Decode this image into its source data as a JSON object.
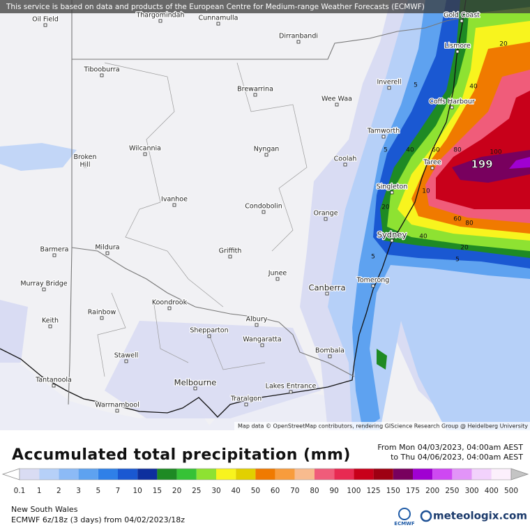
{
  "notice": "This service is based on data and products of the European Centre for Medium-range Weather Forecasts (ECMWF)",
  "attribution": "Map data © OpenStreetMap contributors, rendering GIScience Research Group @ Heidelberg University",
  "places": [
    "Oil Field",
    "Thargomindah",
    "Cunnamulla",
    "Dirranbandi",
    "Gold Coast",
    "Lismore",
    "Tibooburra",
    "Brewarrina",
    "Inverell",
    "Wee Waa",
    "Coffs Harbour",
    "Tamworth",
    "Wilcannia",
    "Broken Hill",
    "Nyngan",
    "Coolah",
    "Taree",
    "Singleton",
    "Ivanhoe",
    "Condobolin",
    "Orange",
    "Sydney",
    "Barmera",
    "Mildura",
    "Griffith",
    "Junee",
    "Murray Bridge",
    "Canberra",
    "Tomerong",
    "Koondrook",
    "Rainbow",
    "Keith",
    "Albury",
    "Shepparton",
    "Wangaratta",
    "Bombala",
    "Stawell",
    "Tantanoola",
    "Melbourne",
    "Lakes Entrance",
    "Traralgon",
    "Warrnambool"
  ],
  "max_label": "199",
  "contour_labels": [
    "20",
    "40",
    "5",
    "100",
    "80",
    "60",
    "40",
    "5",
    "10",
    "20",
    "60",
    "80",
    "40",
    "20",
    "5",
    "5"
  ],
  "title": "Accumulated total precipitation (mm)",
  "period": [
    "From Mon 04/03/2023, 04:00am AEST",
    "to Thu 04/06/2023, 04:00am AEST"
  ],
  "legend": {
    "ticks": [
      0.1,
      1,
      2,
      3,
      5,
      7,
      10,
      15,
      20,
      25,
      30,
      40,
      50,
      60,
      70,
      80,
      90,
      100,
      125,
      150,
      175,
      200,
      250,
      300,
      400,
      500
    ],
    "colors": [
      "#d9dcf3",
      "#b6d0f8",
      "#8cbaf6",
      "#5ea2f0",
      "#2f80e8",
      "#1a58d2",
      "#0d2f9e",
      "#1e8a24",
      "#36c236",
      "#8ee232",
      "#f8f41e",
      "#e2d000",
      "#f07a00",
      "#f89c3c",
      "#f8bb8e",
      "#f05c7a",
      "#e82a52",
      "#c8001a",
      "#9e0012",
      "#78005e",
      "#a000d2",
      "#ce48f2",
      "#e294f8",
      "#f2d2fc",
      "#fcf0fc"
    ],
    "below_color": "#ffffff",
    "above_color": "#c4c4c4"
  },
  "region": "New South Wales",
  "model": "ECMWF 6z/18z (3 days) from 04/02/2023/18z",
  "logo": "ECMWF",
  "brand": "meteologix.com"
}
